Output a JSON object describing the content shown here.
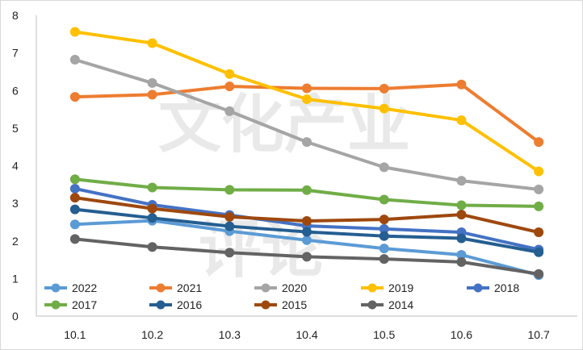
{
  "watermark": {
    "line1": "文化产业",
    "line2": "评论"
  },
  "chart_data": {
    "type": "line",
    "title": "",
    "xlabel": "",
    "ylabel": "",
    "categories": [
      "10.1",
      "10.2",
      "10.3",
      "10.4",
      "10.5",
      "10.6",
      "10.7"
    ],
    "ylim": [
      0,
      8
    ],
    "yticks": [
      0,
      1,
      2,
      3,
      4,
      5,
      6,
      7,
      8
    ],
    "grid": false,
    "legend_position": "bottom-inside",
    "series": [
      {
        "name": "2022",
        "color": "#5b9bd5",
        "values": [
          2.44,
          2.54,
          2.26,
          2.02,
          1.8,
          1.63,
          1.09
        ]
      },
      {
        "name": "2021",
        "color": "#ed7d31",
        "values": [
          5.83,
          5.89,
          6.11,
          6.06,
          6.05,
          6.16,
          4.63
        ]
      },
      {
        "name": "2020",
        "color": "#a5a5a5",
        "values": [
          6.82,
          6.2,
          5.45,
          4.63,
          3.96,
          3.6,
          3.37
        ]
      },
      {
        "name": "2019",
        "color": "#ffc000",
        "values": [
          7.56,
          7.26,
          6.44,
          5.77,
          5.52,
          5.21,
          3.85
        ]
      },
      {
        "name": "2018",
        "color": "#4472c4",
        "values": [
          3.39,
          2.96,
          2.69,
          2.4,
          2.32,
          2.23,
          1.77
        ]
      },
      {
        "name": "2017",
        "color": "#70ad47",
        "values": [
          3.64,
          3.42,
          3.36,
          3.35,
          3.1,
          2.95,
          2.92
        ]
      },
      {
        "name": "2016",
        "color": "#255e91",
        "values": [
          2.84,
          2.61,
          2.39,
          2.24,
          2.13,
          2.07,
          1.7
        ]
      },
      {
        "name": "2015",
        "color": "#9e480e",
        "values": [
          3.15,
          2.86,
          2.64,
          2.53,
          2.57,
          2.7,
          2.23
        ]
      },
      {
        "name": "2014",
        "color": "#636363",
        "values": [
          2.05,
          1.84,
          1.69,
          1.58,
          1.52,
          1.44,
          1.12
        ]
      }
    ]
  }
}
